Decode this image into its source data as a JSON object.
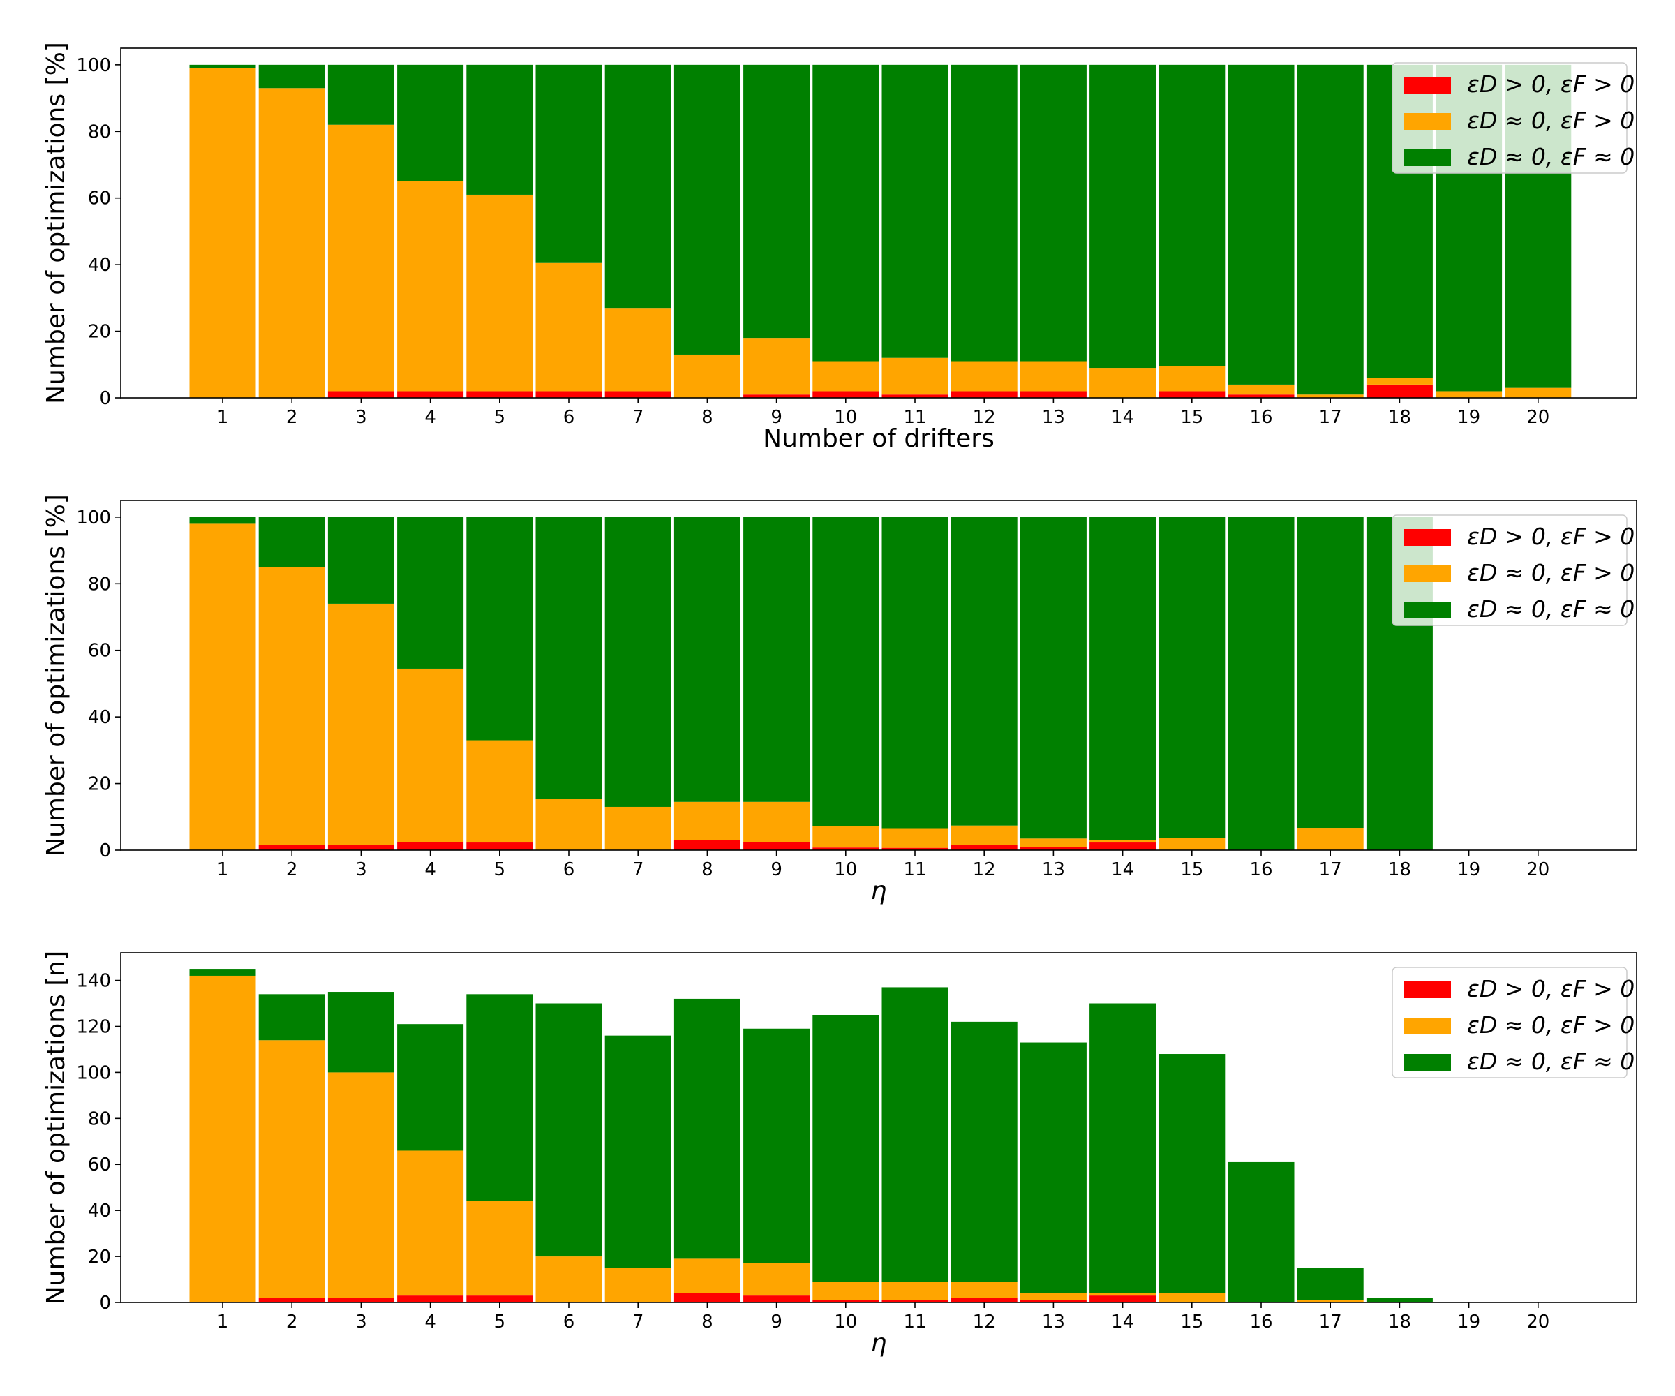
{
  "chart_data": [
    {
      "type": "bar",
      "stacked": true,
      "title": "",
      "xlabel": "Number of drifters",
      "ylabel": "Number of optimizations [%]",
      "ylim": [
        0,
        105
      ],
      "yticks": [
        0,
        20,
        40,
        60,
        80,
        100
      ],
      "categories": [
        "1",
        "2",
        "3",
        "4",
        "5",
        "6",
        "7",
        "8",
        "9",
        "10",
        "11",
        "12",
        "13",
        "14",
        "15",
        "16",
        "17",
        "18",
        "19",
        "20"
      ],
      "legend_position": "top-right",
      "series": [
        {
          "name": "εD > 0, εF > 0",
          "color": "#ff0000",
          "values": [
            0,
            0,
            2,
            2,
            2,
            2,
            2,
            0,
            1,
            2,
            1,
            2,
            2,
            0,
            2,
            1,
            0,
            4,
            0,
            0
          ]
        },
        {
          "name": "εD ≈ 0, εF > 0",
          "color": "#ffa500",
          "values": [
            99,
            93,
            80,
            63,
            59,
            38.5,
            25,
            13,
            17,
            9,
            11,
            9,
            9,
            9,
            7.5,
            3,
            1,
            2,
            2,
            3
          ]
        },
        {
          "name": "εD ≈ 0, εF ≈ 0",
          "color": "#008000",
          "values": [
            1,
            7,
            18,
            35,
            39,
            59.5,
            73,
            87,
            82,
            89,
            88,
            89,
            89,
            91,
            90.5,
            96,
            99,
            94,
            98,
            97
          ]
        }
      ]
    },
    {
      "type": "bar",
      "stacked": true,
      "title": "",
      "xlabel": "η",
      "ylabel": "Number of optimizations [%]",
      "ylim": [
        0,
        105
      ],
      "yticks": [
        0,
        20,
        40,
        60,
        80,
        100
      ],
      "categories": [
        "1",
        "2",
        "3",
        "4",
        "5",
        "6",
        "7",
        "8",
        "9",
        "10",
        "11",
        "12",
        "13",
        "14",
        "15",
        "16",
        "17",
        "18",
        "19",
        "20"
      ],
      "legend_position": "top-right",
      "series": [
        {
          "name": "εD > 0, εF > 0",
          "color": "#ff0000",
          "values": [
            0,
            1.5,
            1.5,
            2.5,
            2.3,
            0,
            0,
            3,
            2.5,
            0.8,
            0.7,
            1.6,
            0.9,
            2.3,
            0,
            0,
            0,
            0,
            0,
            0
          ]
        },
        {
          "name": "εD ≈ 0, εF > 0",
          "color": "#ffa500",
          "values": [
            98,
            83.5,
            72.5,
            52,
            30.7,
            15.4,
            13,
            11.5,
            12,
            6.4,
            5.9,
            5.8,
            2.6,
            0.8,
            3.7,
            0,
            6.7,
            0,
            0,
            0
          ]
        },
        {
          "name": "εD ≈ 0, εF ≈ 0",
          "color": "#008000",
          "values": [
            2,
            15,
            26,
            45.5,
            67,
            84.6,
            87,
            85.5,
            85.5,
            92.8,
            93.4,
            92.6,
            96.5,
            96.9,
            96.3,
            100,
            93.3,
            100,
            0,
            0
          ]
        }
      ]
    },
    {
      "type": "bar",
      "stacked": true,
      "title": "",
      "xlabel": "η",
      "ylabel": "Number of optimizations [n]",
      "ylim": [
        0,
        152
      ],
      "yticks": [
        0,
        20,
        40,
        60,
        80,
        100,
        120,
        140
      ],
      "categories": [
        "1",
        "2",
        "3",
        "4",
        "5",
        "6",
        "7",
        "8",
        "9",
        "10",
        "11",
        "12",
        "13",
        "14",
        "15",
        "16",
        "17",
        "18",
        "19",
        "20"
      ],
      "legend_position": "top-right",
      "series": [
        {
          "name": "εD > 0, εF > 0",
          "color": "#ff0000",
          "values": [
            0,
            2,
            2,
            3,
            3,
            0,
            0,
            4,
            3,
            1,
            1,
            2,
            1,
            3,
            0,
            0,
            0,
            0,
            0,
            0
          ]
        },
        {
          "name": "εD ≈ 0, εF > 0",
          "color": "#ffa500",
          "values": [
            142,
            112,
            98,
            63,
            41,
            20,
            15,
            15,
            14,
            8,
            8,
            7,
            3,
            1,
            4,
            0,
            1,
            0,
            0,
            0
          ]
        },
        {
          "name": "εD ≈ 0, εF ≈ 0",
          "color": "#008000",
          "values": [
            3,
            20,
            35,
            55,
            90,
            110,
            101,
            113,
            102,
            116,
            128,
            113,
            109,
            126,
            104,
            61,
            14,
            2,
            0,
            0
          ]
        }
      ]
    }
  ]
}
